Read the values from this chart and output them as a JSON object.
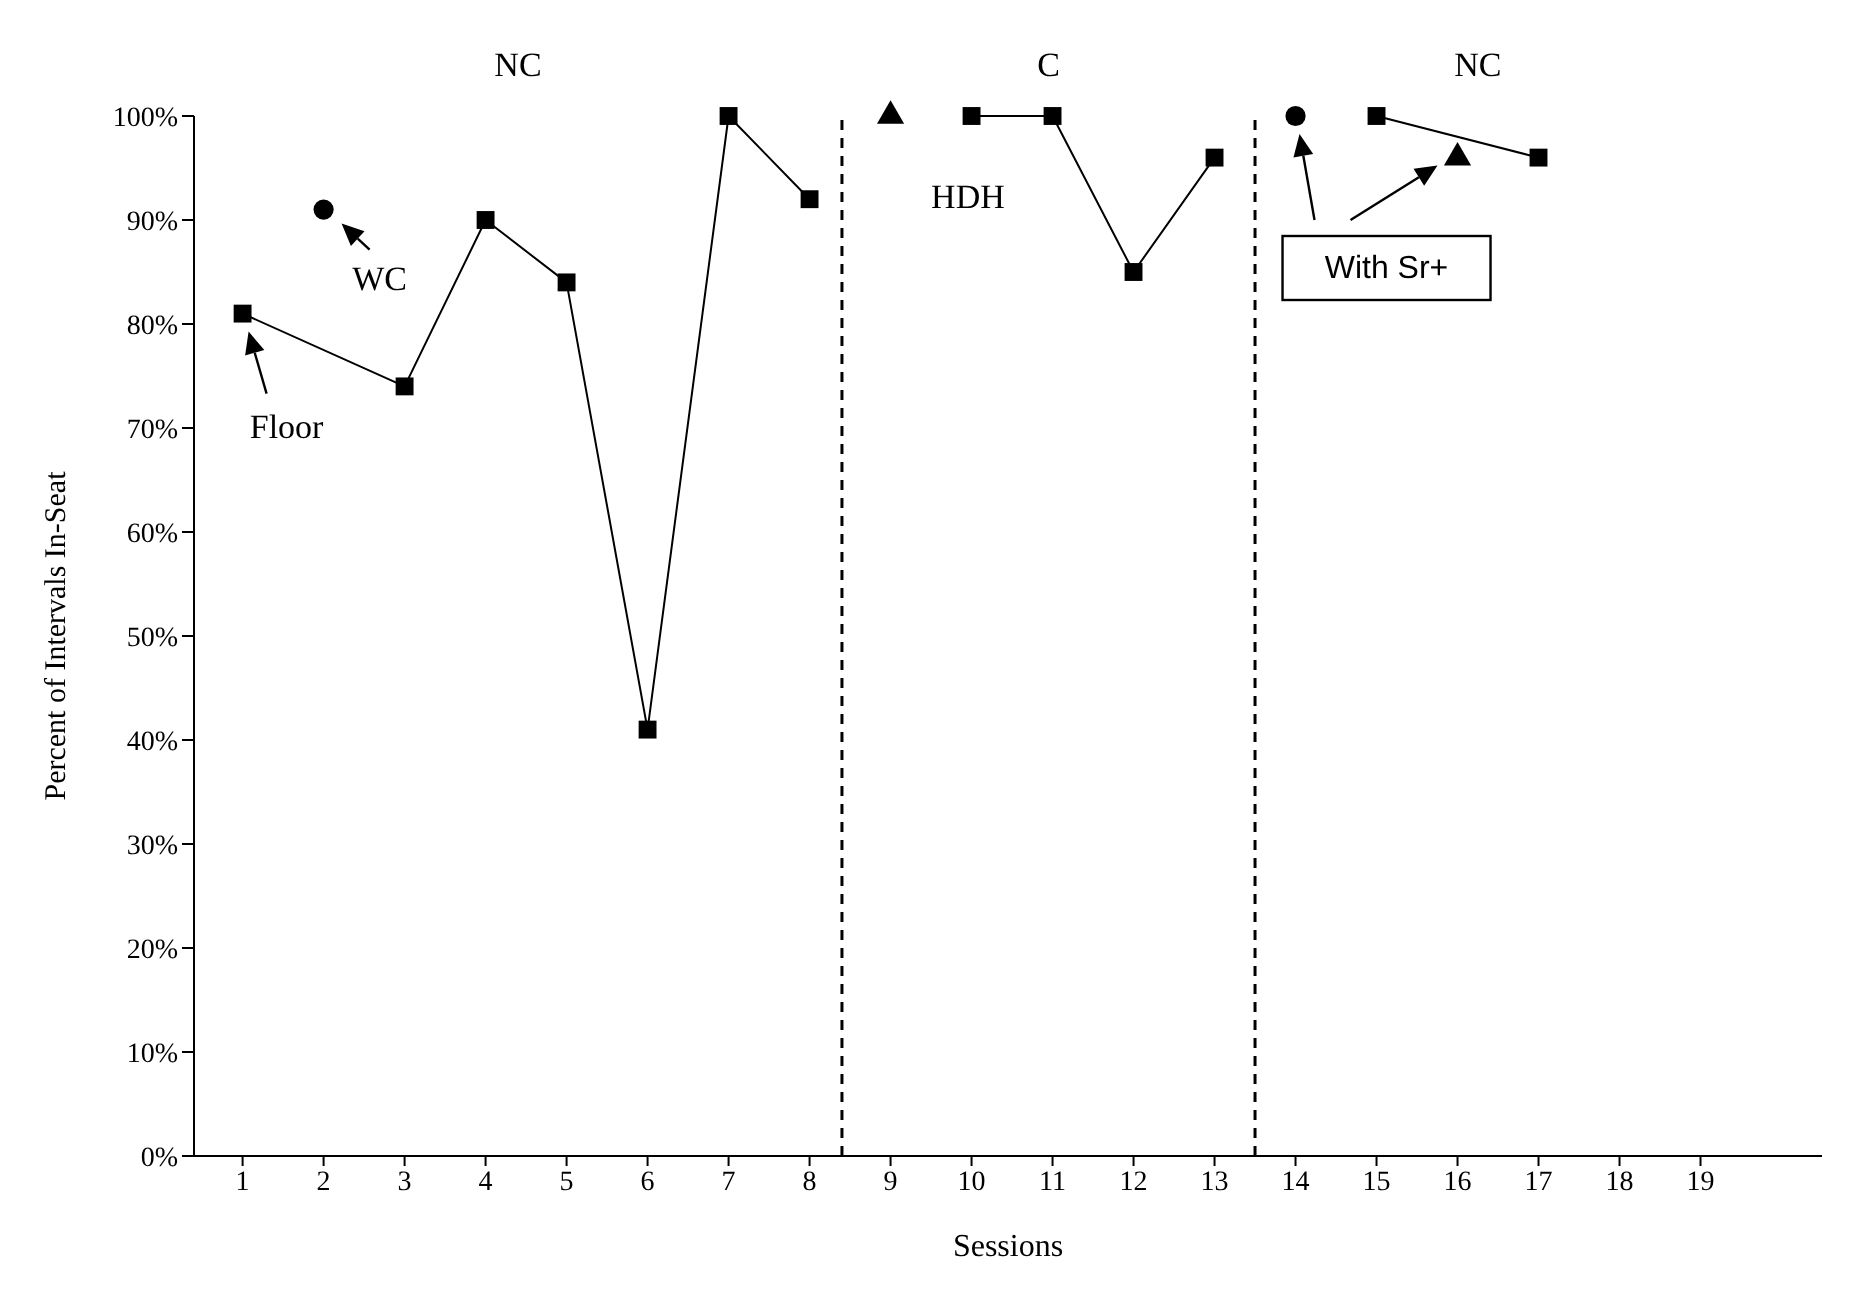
{
  "chart_data": {
    "type": "line",
    "xlabel": "Sessions",
    "ylabel": "Percent of Intervals In-Seat",
    "xlim": [
      0.4,
      20.5
    ],
    "xticks": [
      1,
      2,
      3,
      4,
      5,
      6,
      7,
      8,
      9,
      10,
      11,
      12,
      13,
      14,
      15,
      16,
      17,
      18,
      19
    ],
    "ylim": [
      0,
      100
    ],
    "yticks": [
      {
        "value": 0,
        "label": "0%"
      },
      {
        "value": 10,
        "label": "10%"
      },
      {
        "value": 20,
        "label": "20%"
      },
      {
        "value": 30,
        "label": "30%"
      },
      {
        "value": 40,
        "label": "40%"
      },
      {
        "value": 50,
        "label": "50%"
      },
      {
        "value": 60,
        "label": "60%"
      },
      {
        "value": 70,
        "label": "70%"
      },
      {
        "value": 80,
        "label": "80%"
      },
      {
        "value": 90,
        "label": "90%"
      },
      {
        "value": 100,
        "label": "100%"
      }
    ],
    "series": [
      {
        "marker": "square",
        "color": "#000000",
        "x": [
          1,
          3,
          4,
          5,
          6,
          7,
          8
        ],
        "values": [
          81,
          74,
          90,
          84,
          41,
          100,
          92
        ]
      },
      {
        "type": "scatter",
        "marker": "circle",
        "color": "#000000",
        "x": [
          2,
          14
        ],
        "values": [
          91,
          100
        ]
      },
      {
        "type": "scatter",
        "marker": "triangle",
        "color": "#000000",
        "x": [
          9,
          16
        ],
        "values": [
          100,
          96
        ]
      },
      {
        "marker": "square",
        "color": "#000000",
        "x": [
          10,
          11,
          12,
          13
        ],
        "values": [
          100,
          100,
          85,
          96
        ]
      },
      {
        "marker": "square",
        "color": "#000000",
        "x": [
          15,
          17
        ],
        "values": [
          100,
          96
        ]
      }
    ],
    "ref_lines": [
      {
        "axis": "x",
        "value": 8.4,
        "line_style": "dashed",
        "color": "#000000"
      },
      {
        "axis": "x",
        "value": 13.5,
        "line_style": "dashed",
        "color": "#000000"
      }
    ],
    "annotations": [
      "NC",
      "C",
      "NC",
      {
        "text": "Floor",
        "x": 1,
        "y": 81
      },
      {
        "text": "WC",
        "x": 2,
        "y": 91
      },
      "HDH",
      "With Sr+"
    ]
  }
}
